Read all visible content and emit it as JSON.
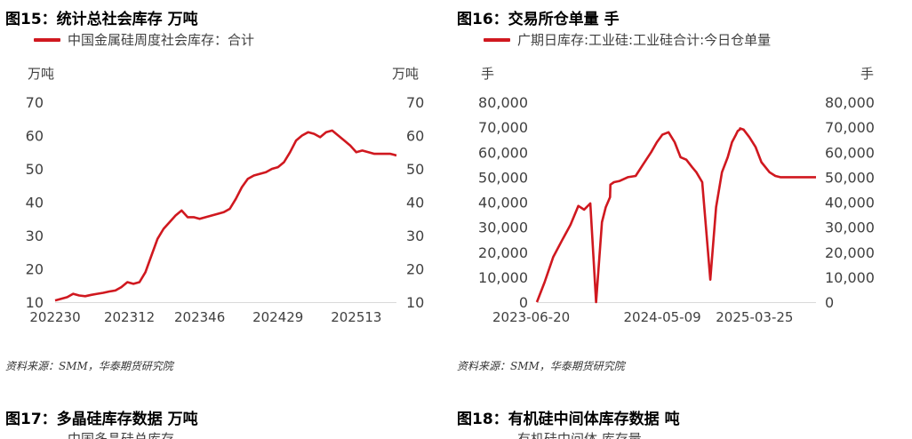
{
  "fig15": {
    "title": "图15：统计总社会库存 万吨",
    "legend": "中国金属硅周度社会库存：合计",
    "unit_left": "万吨",
    "unit_right": "万吨",
    "source": "资料来源：SMM，华泰期货研究院"
  },
  "fig16": {
    "title": "图16：交易所仓单量 手",
    "legend": "广期日库存:工业硅:工业硅合计:今日仓单量",
    "unit_left": "手",
    "unit_right": "手",
    "source": "资料来源：SMM，华泰期货研究院"
  },
  "fig17": {
    "title": "图17：多晶硅库存数据 万吨",
    "legend": "中国多晶硅总库存"
  },
  "fig18": {
    "title": "图18：有机硅中间体库存数据 吨",
    "legend": "有机硅中间体 库存量"
  },
  "colors": {
    "series": "#D0181F",
    "axis": "#D9D9D9",
    "tick": "#404040"
  },
  "chart_data": [
    {
      "type": "line",
      "title": "统计总社会库存 万吨",
      "ylabel": "万吨",
      "ylim": [
        10,
        70
      ],
      "yticks": [
        10,
        20,
        30,
        40,
        50,
        60,
        70
      ],
      "xticks": [
        "202230",
        "202312",
        "202346",
        "202429",
        "202513"
      ],
      "x_range": [
        0,
        170
      ],
      "xtick_positions": [
        0,
        37,
        72,
        111,
        150
      ],
      "grid": false,
      "legend_position": "top-left",
      "series": [
        {
          "name": "中国金属硅周度社会库存：合计",
          "x": [
            0,
            3,
            6,
            9,
            12,
            15,
            18,
            21,
            24,
            27,
            30,
            33,
            36,
            39,
            42,
            45,
            48,
            51,
            54,
            57,
            60,
            63,
            66,
            69,
            72,
            75,
            78,
            81,
            84,
            87,
            90,
            93,
            96,
            99,
            102,
            105,
            108,
            111,
            114,
            117,
            120,
            123,
            126,
            129,
            132,
            135,
            138,
            141,
            144,
            147,
            150,
            153,
            156,
            159,
            162,
            165,
            167,
            169,
            170
          ],
          "values": [
            10.5,
            11,
            11.5,
            12.5,
            12,
            11.8,
            12.2,
            12.5,
            12.8,
            13.2,
            13.5,
            14.5,
            16,
            15.5,
            16,
            19,
            24,
            29,
            32,
            34,
            36,
            37.5,
            35.5,
            35.5,
            35,
            35.5,
            36,
            36.5,
            37,
            38,
            41,
            44.5,
            47,
            48,
            48.5,
            49,
            50,
            50.5,
            52,
            55,
            58.5,
            60,
            61,
            60.5,
            59.5,
            61,
            61.5,
            60,
            58.5,
            57,
            55,
            55.5,
            55,
            54.5,
            54.5,
            54.5,
            54.5,
            54.2,
            54
          ]
        }
      ]
    },
    {
      "type": "line",
      "title": "交易所仓单量 手",
      "ylabel": "手",
      "ylim": [
        0,
        80000
      ],
      "yticks": [
        "0",
        "10,000",
        "20,000",
        "30,000",
        "40,000",
        "50,000",
        "60,000",
        "70,000",
        "80,000"
      ],
      "xticks": [
        "2023-06-20",
        "2024-05-09",
        "2025-03-25"
      ],
      "grid": false,
      "legend_position": "top-left",
      "series": [
        {
          "name": "广期日库存:工业硅:工业硅合计:今日仓单量",
          "x": [
            "2023-06-20",
            "2023-07-10",
            "2023-08-01",
            "2023-08-25",
            "2023-09-15",
            "2023-10-05",
            "2023-10-20",
            "2023-11-05",
            "2023-11-20",
            "2023-12-05",
            "2023-12-15",
            "2023-12-26",
            "2023-12-27",
            "2024-01-05",
            "2024-01-20",
            "2024-02-10",
            "2024-03-01",
            "2024-03-20",
            "2024-04-10",
            "2024-04-25",
            "2024-05-09",
            "2024-05-25",
            "2024-06-10",
            "2024-06-25",
            "2024-07-10",
            "2024-07-25",
            "2024-08-05",
            "2024-08-20",
            "2024-09-10",
            "2024-09-25",
            "2024-10-10",
            "2024-10-25",
            "2024-11-05",
            "2024-11-15",
            "2024-11-20",
            "2024-11-25",
            "2024-11-26",
            "2024-12-05",
            "2024-12-20",
            "2025-01-05",
            "2025-01-20",
            "2025-02-10",
            "2025-02-25",
            "2025-03-10",
            "2025-03-25",
            "2025-04-10",
            "2025-04-25",
            "2025-05-10",
            "2025-05-25",
            "2025-06-10"
          ],
          "values": [
            0,
            8000,
            18000,
            25000,
            31000,
            38500,
            37000,
            39500,
            0,
            32000,
            38000,
            42000,
            47000,
            48000,
            48500,
            50000,
            50500,
            55000,
            60000,
            64000,
            67000,
            68000,
            64000,
            58000,
            57000,
            54000,
            52000,
            48000,
            9000,
            38000,
            52000,
            58000,
            64000,
            67000,
            68500,
            69000,
            69500,
            69000,
            66000,
            62000,
            56000,
            52000,
            50500,
            50000,
            50000,
            50000,
            50000,
            50000,
            50000,
            50000
          ]
        }
      ]
    }
  ]
}
